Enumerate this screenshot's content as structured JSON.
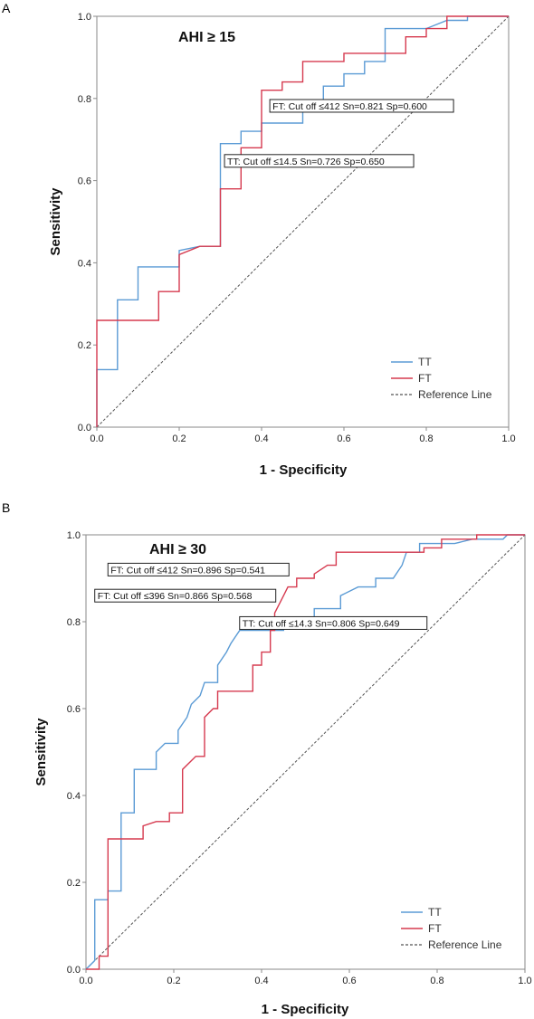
{
  "chart_data": [
    {
      "type": "line",
      "panel_label": "A",
      "title": "AHI ≥ 15",
      "xlabel": "1 - Specificity",
      "ylabel": "Sensitivity",
      "xlim": [
        0,
        1
      ],
      "ylim": [
        0,
        1
      ],
      "x_ticks": [
        "0.0",
        "0.2",
        "0.4",
        "0.6",
        "0.8",
        "1.0"
      ],
      "y_ticks": [
        "0.0",
        "0.2",
        "0.4",
        "0.6",
        "0.8",
        "1.0"
      ],
      "grid": false,
      "legend_position": "bottom-right",
      "legend": [
        "TT",
        "FT",
        "Reference Line"
      ],
      "series": [
        {
          "name": "TT",
          "color": "#5b9bd5",
          "points": [
            [
              0,
              0
            ],
            [
              0,
              0.14
            ],
            [
              0.05,
              0.14
            ],
            [
              0.05,
              0.31
            ],
            [
              0.1,
              0.31
            ],
            [
              0.1,
              0.39
            ],
            [
              0.2,
              0.39
            ],
            [
              0.2,
              0.43
            ],
            [
              0.25,
              0.44
            ],
            [
              0.3,
              0.44
            ],
            [
              0.3,
              0.69
            ],
            [
              0.35,
              0.69
            ],
            [
              0.35,
              0.72
            ],
            [
              0.4,
              0.72
            ],
            [
              0.4,
              0.74
            ],
            [
              0.5,
              0.74
            ],
            [
              0.5,
              0.78
            ],
            [
              0.55,
              0.78
            ],
            [
              0.55,
              0.83
            ],
            [
              0.6,
              0.83
            ],
            [
              0.6,
              0.86
            ],
            [
              0.65,
              0.86
            ],
            [
              0.65,
              0.89
            ],
            [
              0.7,
              0.89
            ],
            [
              0.7,
              0.97
            ],
            [
              0.8,
              0.97
            ],
            [
              0.85,
              0.99
            ],
            [
              0.9,
              0.99
            ],
            [
              0.9,
              1.0
            ],
            [
              1.0,
              1.0
            ]
          ]
        },
        {
          "name": "FT",
          "color": "#d63a4f",
          "points": [
            [
              0,
              0
            ],
            [
              0,
              0.26
            ],
            [
              0.15,
              0.26
            ],
            [
              0.15,
              0.33
            ],
            [
              0.2,
              0.33
            ],
            [
              0.2,
              0.42
            ],
            [
              0.25,
              0.44
            ],
            [
              0.3,
              0.44
            ],
            [
              0.3,
              0.58
            ],
            [
              0.35,
              0.58
            ],
            [
              0.35,
              0.68
            ],
            [
              0.4,
              0.68
            ],
            [
              0.4,
              0.82
            ],
            [
              0.45,
              0.82
            ],
            [
              0.45,
              0.84
            ],
            [
              0.5,
              0.84
            ],
            [
              0.5,
              0.89
            ],
            [
              0.6,
              0.89
            ],
            [
              0.6,
              0.91
            ],
            [
              0.75,
              0.91
            ],
            [
              0.75,
              0.95
            ],
            [
              0.8,
              0.95
            ],
            [
              0.8,
              0.97
            ],
            [
              0.85,
              0.97
            ],
            [
              0.85,
              1.0
            ],
            [
              1.0,
              1.0
            ]
          ]
        },
        {
          "name": "Reference Line",
          "color": "#555555",
          "dashed": true,
          "points": [
            [
              0,
              0
            ],
            [
              1,
              1
            ]
          ]
        }
      ],
      "annotations": [
        {
          "text": "FT: Cut off  ≤412 Sn=0.821 Sp=0.600",
          "x": 0.42,
          "y": 0.782
        },
        {
          "text": "TT: Cut off  ≤14.5  Sn=0.726 Sp=0.650",
          "x": 0.31,
          "y": 0.648
        }
      ]
    },
    {
      "type": "line",
      "panel_label": "B",
      "title": "AHI ≥ 30",
      "xlabel": "1 - Specificity",
      "ylabel": "Sensitivity",
      "xlim": [
        0,
        1
      ],
      "ylim": [
        0,
        1
      ],
      "x_ticks": [
        "0.0",
        "0.2",
        "0.4",
        "0.6",
        "0.8",
        "1.0"
      ],
      "y_ticks": [
        "0.0",
        "0.2",
        "0.4",
        "0.6",
        "0.8",
        "1.0"
      ],
      "grid": false,
      "legend_position": "bottom-right",
      "legend": [
        "TT",
        "FT",
        "Reference Line"
      ],
      "series": [
        {
          "name": "TT",
          "color": "#5b9bd5",
          "points": [
            [
              0,
              0
            ],
            [
              0.02,
              0.02
            ],
            [
              0.02,
              0.16
            ],
            [
              0.05,
              0.16
            ],
            [
              0.05,
              0.18
            ],
            [
              0.08,
              0.18
            ],
            [
              0.08,
              0.36
            ],
            [
              0.11,
              0.36
            ],
            [
              0.11,
              0.46
            ],
            [
              0.16,
              0.46
            ],
            [
              0.16,
              0.5
            ],
            [
              0.18,
              0.52
            ],
            [
              0.21,
              0.52
            ],
            [
              0.21,
              0.55
            ],
            [
              0.23,
              0.58
            ],
            [
              0.24,
              0.61
            ],
            [
              0.26,
              0.63
            ],
            [
              0.27,
              0.66
            ],
            [
              0.3,
              0.66
            ],
            [
              0.3,
              0.7
            ],
            [
              0.32,
              0.73
            ],
            [
              0.33,
              0.75
            ],
            [
              0.35,
              0.78
            ],
            [
              0.45,
              0.78
            ],
            [
              0.45,
              0.8
            ],
            [
              0.52,
              0.8
            ],
            [
              0.52,
              0.83
            ],
            [
              0.58,
              0.83
            ],
            [
              0.58,
              0.86
            ],
            [
              0.62,
              0.88
            ],
            [
              0.66,
              0.88
            ],
            [
              0.66,
              0.9
            ],
            [
              0.7,
              0.9
            ],
            [
              0.72,
              0.93
            ],
            [
              0.73,
              0.96
            ],
            [
              0.76,
              0.96
            ],
            [
              0.76,
              0.98
            ],
            [
              0.84,
              0.98
            ],
            [
              0.88,
              0.99
            ],
            [
              0.95,
              0.99
            ],
            [
              0.96,
              1.0
            ],
            [
              1.0,
              1.0
            ]
          ]
        },
        {
          "name": "FT",
          "color": "#d63a4f",
          "points": [
            [
              0,
              0
            ],
            [
              0.03,
              0
            ],
            [
              0.03,
              0.03
            ],
            [
              0.05,
              0.03
            ],
            [
              0.05,
              0.3
            ],
            [
              0.13,
              0.3
            ],
            [
              0.13,
              0.33
            ],
            [
              0.16,
              0.34
            ],
            [
              0.19,
              0.34
            ],
            [
              0.19,
              0.36
            ],
            [
              0.22,
              0.36
            ],
            [
              0.22,
              0.46
            ],
            [
              0.24,
              0.48
            ],
            [
              0.25,
              0.49
            ],
            [
              0.27,
              0.49
            ],
            [
              0.27,
              0.58
            ],
            [
              0.29,
              0.6
            ],
            [
              0.3,
              0.6
            ],
            [
              0.3,
              0.64
            ],
            [
              0.38,
              0.64
            ],
            [
              0.38,
              0.7
            ],
            [
              0.4,
              0.7
            ],
            [
              0.4,
              0.73
            ],
            [
              0.42,
              0.73
            ],
            [
              0.42,
              0.78
            ],
            [
              0.43,
              0.78
            ],
            [
              0.43,
              0.82
            ],
            [
              0.45,
              0.86
            ],
            [
              0.46,
              0.88
            ],
            [
              0.48,
              0.88
            ],
            [
              0.48,
              0.9
            ],
            [
              0.52,
              0.9
            ],
            [
              0.52,
              0.91
            ],
            [
              0.55,
              0.93
            ],
            [
              0.57,
              0.93
            ],
            [
              0.57,
              0.96
            ],
            [
              0.77,
              0.96
            ],
            [
              0.77,
              0.97
            ],
            [
              0.81,
              0.97
            ],
            [
              0.81,
              0.99
            ],
            [
              0.89,
              0.99
            ],
            [
              0.89,
              1.0
            ],
            [
              1.0,
              1.0
            ]
          ]
        },
        {
          "name": "Reference Line",
          "color": "#555555",
          "dashed": true,
          "points": [
            [
              0,
              0
            ],
            [
              1,
              1
            ]
          ]
        }
      ],
      "annotations": [
        {
          "text": "FT: Cut off ≤412 Sn=0.896 Sp=0.541",
          "x": 0.05,
          "y": 0.92
        },
        {
          "text": "FT: Cut off ≤396 Sn=0.866 Sp=0.568",
          "x": 0.02,
          "y": 0.86
        },
        {
          "text": "TT: Cut off ≤14.3 Sn=0.806 Sp=0.649",
          "x": 0.35,
          "y": 0.797
        }
      ]
    }
  ]
}
